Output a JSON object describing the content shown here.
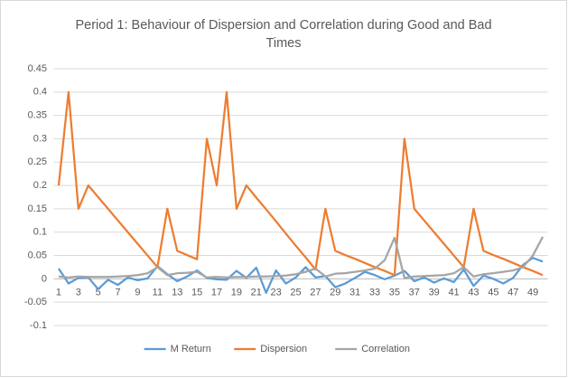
{
  "chart_data": {
    "type": "line",
    "title": "Period 1: Behaviour of Dispersion and Correlation during Good and Bad Times",
    "categories": [
      1,
      null,
      3,
      null,
      5,
      null,
      7,
      null,
      9,
      null,
      11,
      null,
      13,
      null,
      15,
      null,
      17,
      null,
      19,
      null,
      21,
      null,
      23,
      null,
      25,
      null,
      27,
      null,
      29,
      null,
      31,
      null,
      33,
      null,
      35,
      null,
      37,
      null,
      39,
      null,
      41,
      null,
      43,
      null,
      45,
      null,
      47,
      null,
      49,
      null
    ],
    "ylim": [
      -0.1,
      0.45
    ],
    "yticks": [
      -0.1,
      -0.05,
      0,
      0.05,
      0.1,
      0.15,
      0.2,
      0.25,
      0.3,
      0.35,
      0.4,
      0.45
    ],
    "grid": true,
    "legend": "bottom",
    "series": [
      {
        "name": "M Return",
        "color": "#5b9bd5",
        "values": [
          0.022,
          -0.01,
          0.002,
          0.003,
          -0.022,
          -0.002,
          -0.013,
          0.003,
          -0.003,
          0.001,
          0.027,
          0.01,
          -0.005,
          0.005,
          0.018,
          0.002,
          -0.001,
          -0.002,
          0.017,
          0.002,
          0.024,
          -0.03,
          0.018,
          -0.01,
          0.003,
          0.025,
          0.003,
          0.006,
          -0.018,
          -0.01,
          0.002,
          0.015,
          0.008,
          -0.001,
          0.007,
          0.017,
          -0.005,
          0.003,
          -0.008,
          0.001,
          -0.007,
          0.02,
          -0.015,
          0.007,
          0,
          -0.01,
          0.002,
          0.03,
          0.045,
          0.037
        ]
      },
      {
        "name": "Dispersion",
        "color": "#ed7d31",
        "values": [
          0.2,
          0.4,
          0.15,
          0.2,
          0.175,
          0.15,
          0.125,
          0.1,
          0.075,
          0.05,
          0.025,
          0.15,
          0.06,
          0.051,
          0.042,
          0.3,
          0.2,
          0.4,
          0.15,
          0.2,
          0.174,
          0.149,
          0.123,
          0.097,
          0.071,
          0.046,
          0.02,
          0.15,
          0.06,
          0.051,
          0.043,
          0.034,
          0.025,
          0.017,
          0.008,
          0.3,
          0.15,
          0.125,
          0.1,
          0.075,
          0.05,
          0.025,
          0.15,
          0.06,
          0.051,
          0.043,
          0.034,
          0.025,
          0.017,
          0.008
        ]
      },
      {
        "name": "Correlation",
        "color": "#a5a5a5",
        "values": [
          0.005,
          0.003,
          0.005,
          0.004,
          0.004,
          0.004,
          0.005,
          0.006,
          0.008,
          0.012,
          0.025,
          0.008,
          0.012,
          0.013,
          0.015,
          0.003,
          0.004,
          0.003,
          0.004,
          0.004,
          0.005,
          0.005,
          0.006,
          0.007,
          0.01,
          0.015,
          0.022,
          0.005,
          0.011,
          0.012,
          0.015,
          0.018,
          0.022,
          0.04,
          0.088,
          0.002,
          0.005,
          0.006,
          0.007,
          0.008,
          0.012,
          0.025,
          0.005,
          0.01,
          0.012,
          0.015,
          0.018,
          0.025,
          0.05,
          0.09
        ]
      }
    ]
  }
}
